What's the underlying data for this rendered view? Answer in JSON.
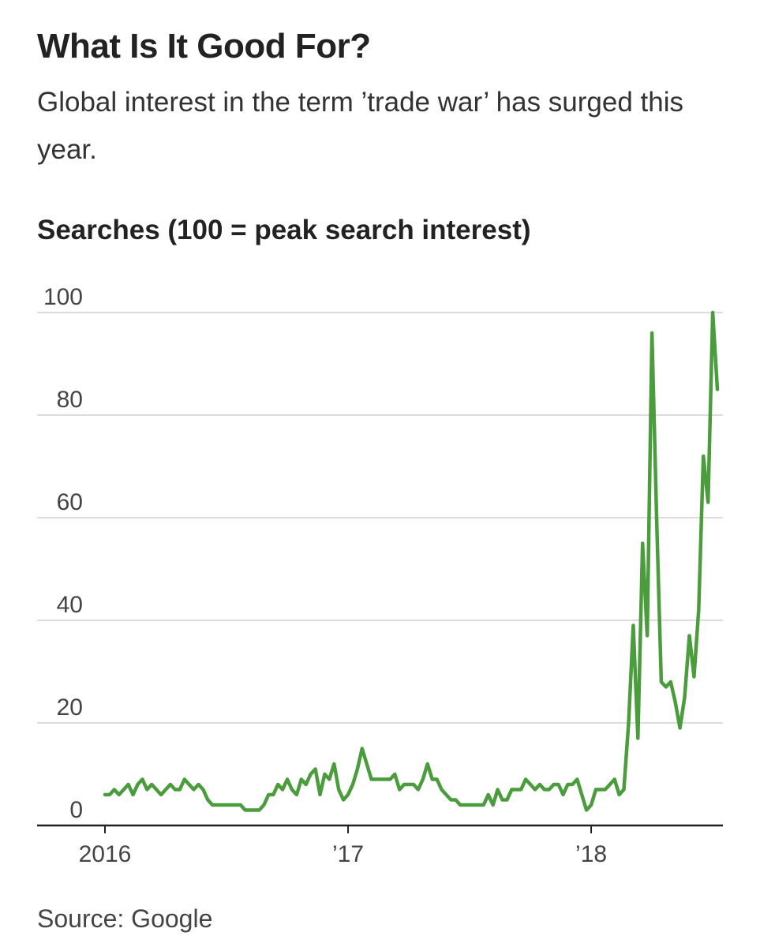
{
  "title": "What Is It Good For?",
  "subtitle": "Global interest in the term ’trade war’ has surged this year.",
  "source": "Source: Google",
  "chart_data": {
    "type": "line",
    "title": "Searches (100 = peak search interest)",
    "xlabel": "",
    "ylabel": "",
    "ylim": [
      0,
      100
    ],
    "yticks": [
      0,
      20,
      40,
      60,
      80,
      100
    ],
    "ytick_labels": [
      "0",
      "20",
      "40",
      "60",
      "80",
      "100"
    ],
    "xlim": [
      0,
      131
    ],
    "xticks": [
      0,
      52,
      104
    ],
    "xtick_labels": [
      "2016",
      "’17",
      "’18"
    ],
    "grid": true,
    "line_color": "#4a9c3c",
    "series": [
      {
        "name": "trade war",
        "values": [
          6,
          6,
          7,
          6,
          7,
          8,
          6,
          8,
          9,
          7,
          8,
          7,
          6,
          7,
          8,
          7,
          7,
          9,
          8,
          7,
          8,
          7,
          5,
          4,
          4,
          4,
          4,
          4,
          4,
          4,
          3,
          3,
          3,
          3,
          4,
          6,
          6,
          8,
          7,
          9,
          7,
          6,
          9,
          8,
          10,
          11,
          6,
          10,
          9,
          12,
          7,
          5,
          6,
          8,
          11,
          15,
          12,
          9,
          9,
          9,
          9,
          9,
          10,
          7,
          8,
          8,
          8,
          7,
          9,
          12,
          9,
          9,
          7,
          6,
          5,
          5,
          4,
          4,
          4,
          4,
          4,
          4,
          6,
          4,
          7,
          5,
          5,
          7,
          7,
          7,
          9,
          8,
          7,
          8,
          7,
          7,
          8,
          8,
          6,
          8,
          8,
          9,
          6,
          3,
          4,
          7,
          7,
          7,
          8,
          9,
          6,
          7,
          20,
          39,
          17,
          55,
          37,
          96,
          60,
          28,
          27,
          28,
          24,
          19,
          25,
          37,
          29,
          42,
          72,
          63,
          100,
          85
        ]
      }
    ]
  }
}
